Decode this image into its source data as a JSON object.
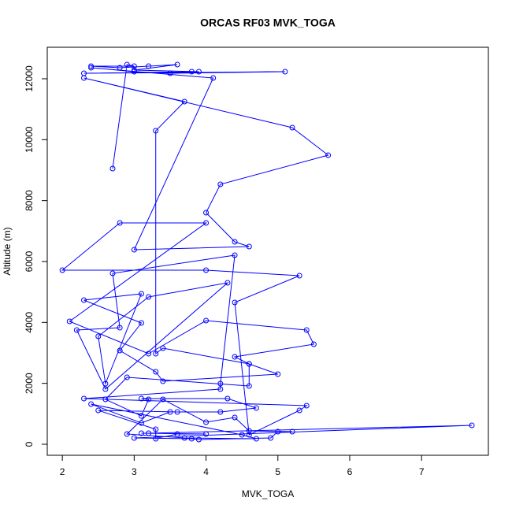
{
  "chart_data": {
    "type": "line",
    "title": "ORCAS RF03 MVK_TOGA",
    "x_label": "MVK_TOGA",
    "y_label": "Altitude (m)",
    "color": "#0000ff",
    "markers": true,
    "grid": false,
    "xlim": [
      1.79,
      7.93
    ],
    "ylim": [
      -362,
      13034
    ],
    "xticks": [
      2,
      3,
      4,
      5,
      6,
      7
    ],
    "yticks": [
      0,
      2000,
      4000,
      6000,
      8000,
      10000,
      12000
    ],
    "x": [
      2.7,
      2.9,
      3.0,
      2.4,
      2.8,
      3.2,
      3.6,
      3.0,
      3.9,
      3.8,
      2.3,
      5.1,
      3.5,
      3.0,
      2.4,
      4.1,
      3.0,
      4.6,
      4.4,
      4.0,
      4.2,
      5.7,
      5.2,
      2.3,
      3.7,
      3.3,
      3.3,
      3.4,
      4.6,
      5.0,
      3.4,
      3.3,
      2.8,
      3.1,
      2.3,
      3.1,
      2.6,
      2.5,
      3.2,
      4.3,
      2.6,
      2.2,
      2.8,
      2.7,
      4.4,
      4.2,
      4.2,
      2.3,
      5.4,
      5.3,
      4.6,
      4.4,
      5.3,
      4.0,
      2.0,
      2.8,
      4.0,
      2.1,
      3.2,
      4.0,
      5.4,
      5.5,
      4.4,
      4.6,
      4.6,
      2.9,
      2.6,
      3.1,
      3.2,
      3.1,
      4.3,
      4.7,
      4.2,
      3.6,
      2.5,
      3.3,
      3.3,
      3.6,
      4.0,
      3.1,
      3.2,
      7.7,
      3.0,
      3.8,
      3.9,
      4.9,
      5.0,
      5.2,
      4.6,
      4.4,
      4.0,
      3.4,
      2.9,
      3.7,
      4.7,
      4.5,
      2.4,
      3.1,
      3.5
    ],
    "values": [
      9051,
      12465,
      12413,
      12413,
      12361,
      12413,
      12465,
      12284,
      12232,
      12232,
      12180,
      12232,
      12180,
      12232,
      12361,
      12025,
      6387,
      6491,
      6646,
      7603,
      8534,
      9490,
      10396,
      12025,
      11250,
      10292,
      2974,
      3155,
      2638,
      2302,
      2069,
      2379,
      3077,
      3982,
      4732,
      4939,
      1991,
      3543,
      4836,
      5301,
      1810,
      3750,
      3827,
      5612,
      6206,
      1991,
      1810,
      1500,
      1267,
      1112,
      310,
      4655,
      5534,
      5715,
      5715,
      7267,
      7267,
      4034,
      2974,
      4060,
      3750,
      3284,
      2870,
      2638,
      1914,
      2198,
      1474,
      931,
      1474,
      1500,
      1500,
      1190,
      1060,
      1060,
      1112,
      491,
      181,
      336,
      336,
      362,
      362,
      621,
      207,
      181,
      155,
      207,
      414,
      414,
      440,
      879,
      724,
      1474,
      336,
      207,
      181,
      310,
      1319,
      698,
      1060
    ]
  }
}
